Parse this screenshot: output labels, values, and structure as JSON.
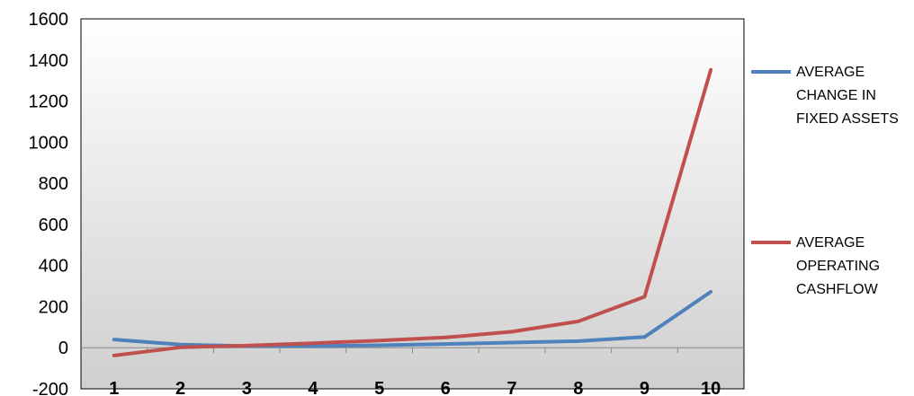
{
  "chart_data": {
    "type": "line",
    "title": "",
    "xlabel": "",
    "ylabel": "",
    "x": [
      "1",
      "2",
      "3",
      "4",
      "5",
      "6",
      "7",
      "8",
      "9",
      "10"
    ],
    "ylim": [
      -200,
      1600
    ],
    "yticks": [
      "-200",
      "0",
      "200",
      "400",
      "600",
      "800",
      "1000",
      "1200",
      "1400",
      "1600"
    ],
    "grid": false,
    "legend_position": "right",
    "series": [
      {
        "name_lines": [
          "AVERAGE",
          "CHANGE IN",
          "FIXED ASSETS"
        ],
        "color": "#4f81bd",
        "values": [
          40,
          15,
          8,
          8,
          12,
          18,
          25,
          32,
          52,
          272
        ]
      },
      {
        "name_lines": [
          "AVERAGE",
          "OPERATING",
          "CASHFLOW"
        ],
        "color": "#c0504d",
        "values": [
          -38,
          2,
          10,
          22,
          35,
          50,
          78,
          128,
          248,
          1352
        ]
      }
    ]
  }
}
